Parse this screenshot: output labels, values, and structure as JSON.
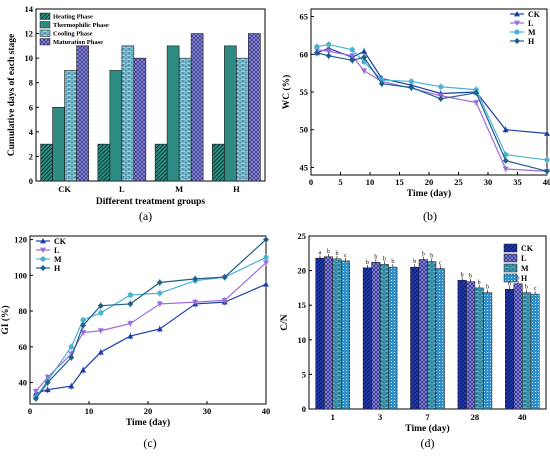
{
  "chart_data": [
    {
      "panel": "(a)",
      "type": "bar",
      "xlabel": "Different treatment groups",
      "ylabel": "Cumulative days of each stage",
      "ylim": [
        0,
        14
      ],
      "yticks": [
        0,
        2,
        4,
        6,
        8,
        10,
        12,
        14
      ],
      "categories": [
        "CK",
        "L",
        "M",
        "H"
      ],
      "legend_position": "top-left",
      "series": [
        {
          "name": "Heating Phase",
          "values": [
            3,
            3,
            3,
            3
          ],
          "color": "#2e8b83",
          "pattern": "diag"
        },
        {
          "name": "Thermophilic Phase",
          "values": [
            6,
            9,
            11,
            11
          ],
          "color": "#2e8b83",
          "pattern": "solid"
        },
        {
          "name": "Cooling Phase",
          "values": [
            9,
            11,
            10,
            10
          ],
          "color": "#8ed8ec",
          "pattern": "brick"
        },
        {
          "name": "Maturation Phase",
          "values": [
            11,
            10,
            12,
            12
          ],
          "color": "#8c8ae0",
          "pattern": "cross"
        }
      ]
    },
    {
      "panel": "(b)",
      "type": "line",
      "xlabel": "Time (day)",
      "ylabel": "WC (%)",
      "xlim": [
        0,
        40
      ],
      "ylim": [
        44,
        66
      ],
      "xticks": [
        0,
        5,
        10,
        15,
        20,
        25,
        30,
        35,
        40
      ],
      "yticks": [
        45,
        50,
        55,
        60,
        65
      ],
      "legend_position": "top-right",
      "x": [
        1,
        3,
        7,
        9,
        12,
        17,
        22,
        28,
        33,
        40
      ],
      "series": [
        {
          "name": "CK",
          "color": "#1b3fa8",
          "marker": "triangle-up",
          "values": [
            60.2,
            60.8,
            59.6,
            60.4,
            56.8,
            55.9,
            54.8,
            55.0,
            50.0,
            49.5
          ]
        },
        {
          "name": "L",
          "color": "#9b6be0",
          "marker": "triangle-down",
          "values": [
            60.6,
            60.4,
            59.8,
            57.8,
            56.4,
            55.5,
            54.5,
            53.6,
            44.8,
            44.5
          ]
        },
        {
          "name": "M",
          "color": "#4ab3d0",
          "marker": "circle",
          "values": [
            61.0,
            61.3,
            60.6,
            59.0,
            56.6,
            56.4,
            55.7,
            55.3,
            46.7,
            46.0
          ]
        },
        {
          "name": "H",
          "color": "#1f5f8a",
          "marker": "diamond",
          "values": [
            60.2,
            59.8,
            59.2,
            59.6,
            56.1,
            55.6,
            54.1,
            54.9,
            45.9,
            44.5
          ]
        }
      ]
    },
    {
      "panel": "(c)",
      "type": "line",
      "xlabel": "Time (day)",
      "ylabel": "GI (%)",
      "xlim": [
        0,
        40
      ],
      "ylim": [
        28,
        122
      ],
      "xticks": [
        0,
        10,
        20,
        30,
        40
      ],
      "yticks": [
        40,
        60,
        80,
        100,
        120
      ],
      "legend_position": "top-left",
      "x": [
        1,
        3,
        7,
        9,
        12,
        17,
        22,
        28,
        33,
        40
      ],
      "series": [
        {
          "name": "CK",
          "color": "#1b3fa8",
          "marker": "triangle-up",
          "values": [
            34,
            36,
            38,
            47,
            57,
            66,
            70,
            84,
            85,
            95
          ]
        },
        {
          "name": "L",
          "color": "#9b6be0",
          "marker": "triangle-down",
          "values": [
            35,
            43,
            56,
            68,
            69,
            73,
            84,
            85,
            86,
            107
          ]
        },
        {
          "name": "M",
          "color": "#4ab3d0",
          "marker": "circle",
          "values": [
            32,
            41,
            60,
            75,
            79,
            89,
            90,
            97,
            99,
            110
          ]
        },
        {
          "name": "H",
          "color": "#1f5f8a",
          "marker": "diamond",
          "values": [
            31,
            40,
            54,
            72,
            83,
            84,
            96,
            98,
            99,
            120
          ]
        }
      ]
    },
    {
      "panel": "(d)",
      "type": "bar",
      "xlabel": "Time (day)",
      "ylabel": "C/N",
      "ylim": [
        0,
        25
      ],
      "yticks": [
        0,
        5,
        10,
        15,
        20,
        25
      ],
      "categories": [
        "1",
        "3",
        "7",
        "28",
        "40"
      ],
      "legend_position": "top-right",
      "series": [
        {
          "name": "CK",
          "color": "#2038a8",
          "pattern": "diag",
          "values": [
            21.8,
            20.4,
            20.5,
            18.6,
            17.3
          ]
        },
        {
          "name": "L",
          "color": "#8282e0",
          "pattern": "cross",
          "values": [
            22.0,
            21.2,
            21.6,
            18.4,
            18.1
          ]
        },
        {
          "name": "M",
          "color": "#4ab3d0",
          "pattern": "brick",
          "values": [
            21.7,
            20.9,
            21.3,
            17.5,
            16.8
          ]
        },
        {
          "name": "H",
          "color": "#2f8fc8",
          "pattern": "dots",
          "values": [
            21.4,
            20.5,
            20.3,
            16.8,
            16.6
          ]
        }
      ],
      "sig_labels": [
        [
          "a",
          "b",
          "b",
          "c"
        ],
        [
          "b",
          "b",
          "b",
          "b"
        ],
        [
          "b",
          "b",
          "b",
          "c"
        ],
        [
          "b",
          "b",
          "b",
          "b"
        ],
        [
          "b",
          "b",
          "b",
          "c"
        ]
      ]
    }
  ]
}
